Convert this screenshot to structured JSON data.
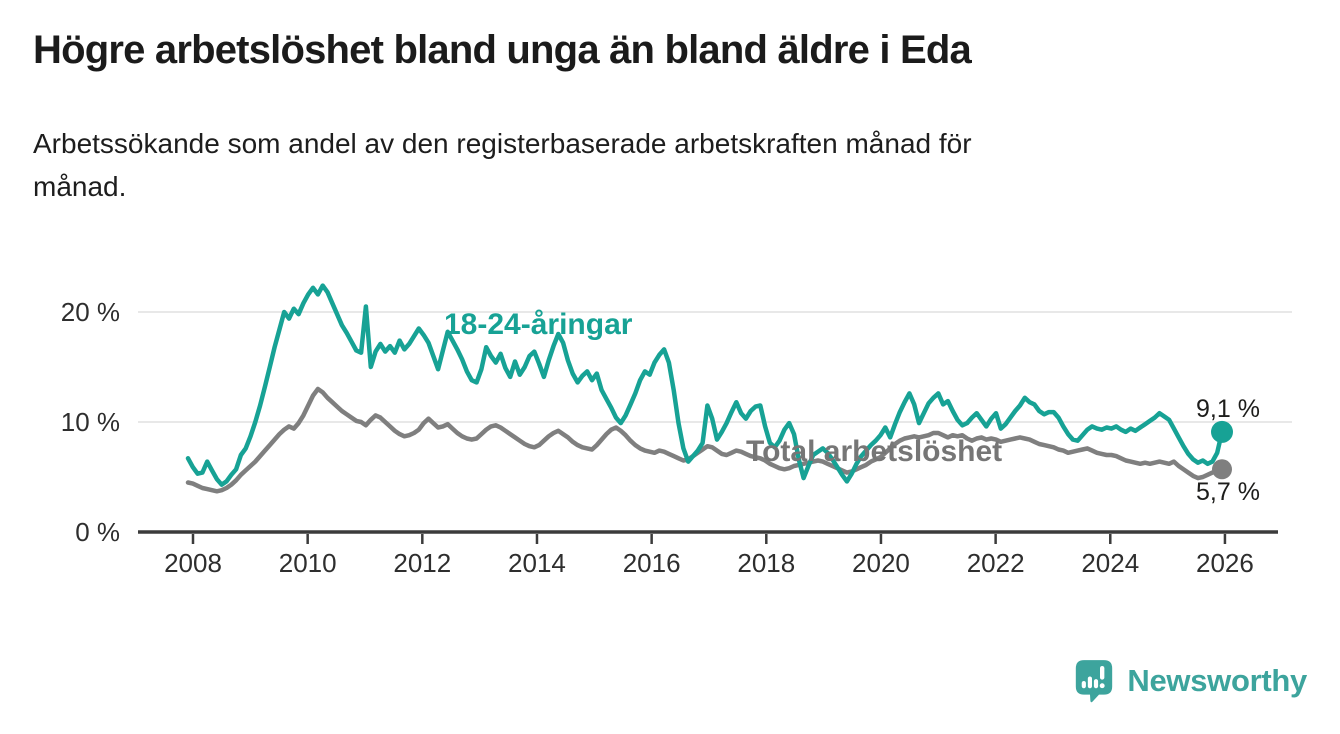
{
  "header": {
    "title": "Högre arbetslöshet bland unga än bland äldre i Eda",
    "subtitle": "Arbetssökande som andel av den registerbaserade arbetskraften månad för månad."
  },
  "chart_data": {
    "type": "line",
    "title": "Högre arbetslöshet bland unga än bland äldre i Eda",
    "subtitle": "Arbetssökande som andel av den registerbaserade arbetskraften månad för månad.",
    "x_unit": "month",
    "x_range": [
      "2008-01",
      "2025-12"
    ],
    "x_ticks": [
      2008,
      2010,
      2012,
      2014,
      2016,
      2018,
      2020,
      2022,
      2024,
      2026
    ],
    "y_ticks": [
      {
        "value": 0,
        "label": "0 %"
      },
      {
        "value": 10,
        "label": "10 %"
      },
      {
        "value": 20,
        "label": "20 %"
      }
    ],
    "ylim": [
      0,
      23
    ],
    "grid": "horizontal",
    "legend": "inline-labels",
    "colors": {
      "grid": "#e0e0e0",
      "axis": "#3b3b3b",
      "tick_text": "#2e2e2e",
      "end_label_text": "#1d1d1b"
    },
    "series": [
      {
        "id": "youth",
        "name": "18-24-åringar",
        "color": "#17a295",
        "end_label": "9,1 %",
        "last_value": 9.1,
        "values": [
          6.7,
          5.9,
          5.3,
          5.4,
          6.4,
          5.6,
          4.8,
          4.3,
          4.6,
          5.2,
          5.7,
          7.0,
          7.6,
          8.7,
          10.0,
          11.5,
          13.2,
          15.0,
          16.8,
          18.4,
          20.0,
          19.4,
          20.3,
          19.8,
          20.8,
          21.6,
          22.2,
          21.6,
          22.4,
          21.8,
          20.8,
          19.8,
          18.8,
          18.1,
          17.3,
          16.5,
          16.3,
          20.5,
          15.0,
          16.4,
          17.1,
          16.4,
          16.9,
          16.3,
          17.4,
          16.6,
          17.1,
          17.8,
          18.5,
          17.9,
          17.2,
          16.0,
          14.8,
          16.5,
          18.2,
          17.4,
          16.6,
          15.7,
          14.6,
          13.8,
          13.6,
          14.8,
          16.8,
          16.0,
          15.4,
          16.2,
          14.9,
          14.1,
          15.5,
          14.3,
          15.0,
          16.0,
          16.4,
          15.3,
          14.1,
          15.6,
          16.9,
          18.0,
          17.2,
          15.6,
          14.4,
          13.6,
          14.2,
          14.6,
          13.8,
          14.4,
          12.9,
          12.1,
          11.3,
          10.4,
          9.9,
          10.6,
          11.6,
          12.6,
          13.8,
          14.6,
          14.3,
          15.4,
          16.1,
          16.6,
          15.4,
          12.9,
          9.9,
          7.6,
          6.4,
          6.9,
          7.4,
          8.1,
          11.5,
          10.3,
          8.4,
          9.1,
          9.9,
          10.9,
          11.8,
          10.8,
          10.3,
          11.0,
          11.4,
          11.5,
          9.6,
          8.1,
          7.7,
          8.3,
          9.3,
          9.9,
          8.9,
          6.6,
          4.9,
          6.0,
          7.0,
          7.3,
          7.6,
          7.2,
          6.6,
          5.9,
          5.2,
          4.6,
          5.3,
          6.2,
          6.9,
          7.4,
          7.9,
          8.3,
          8.8,
          9.5,
          8.6,
          9.8,
          10.9,
          11.8,
          12.6,
          11.6,
          9.9,
          10.8,
          11.7,
          12.2,
          12.6,
          11.6,
          11.9,
          11.0,
          10.2,
          9.7,
          9.9,
          10.4,
          10.8,
          10.2,
          9.6,
          10.3,
          10.8,
          9.4,
          9.8,
          10.4,
          11.0,
          11.5,
          12.2,
          11.8,
          11.6,
          11.0,
          10.7,
          10.9,
          10.9,
          10.4,
          9.6,
          8.9,
          8.4,
          8.3,
          8.8,
          9.3,
          9.6,
          9.4,
          9.3,
          9.5,
          9.4,
          9.6,
          9.3,
          9.1,
          9.4,
          9.2,
          9.5,
          9.8,
          10.1,
          10.4,
          10.8,
          10.5,
          10.2,
          9.4,
          8.6,
          7.8,
          7.1,
          6.6,
          6.3,
          6.5,
          6.2,
          6.4,
          7.2,
          9.1
        ]
      },
      {
        "id": "total",
        "name": "Total arbetslöshet",
        "color": "#7f7f7f",
        "label_color": "#767676",
        "end_label": "5,7 %",
        "last_value": 5.7,
        "values": [
          4.5,
          4.4,
          4.2,
          4.0,
          3.9,
          3.8,
          3.7,
          3.8,
          4.0,
          4.3,
          4.7,
          5.2,
          5.6,
          6.0,
          6.4,
          6.9,
          7.4,
          7.9,
          8.4,
          8.9,
          9.3,
          9.6,
          9.4,
          9.9,
          10.6,
          11.5,
          12.4,
          13.0,
          12.7,
          12.2,
          11.8,
          11.4,
          11.0,
          10.7,
          10.4,
          10.1,
          10.0,
          9.7,
          10.2,
          10.6,
          10.4,
          10.0,
          9.6,
          9.2,
          8.9,
          8.7,
          8.8,
          9.0,
          9.3,
          9.9,
          10.3,
          9.9,
          9.5,
          9.6,
          9.8,
          9.4,
          9.0,
          8.7,
          8.5,
          8.4,
          8.5,
          8.9,
          9.3,
          9.6,
          9.7,
          9.5,
          9.2,
          8.9,
          8.6,
          8.3,
          8.0,
          7.8,
          7.7,
          7.9,
          8.3,
          8.7,
          9.0,
          9.2,
          8.9,
          8.6,
          8.2,
          7.9,
          7.7,
          7.6,
          7.5,
          7.9,
          8.4,
          8.9,
          9.3,
          9.5,
          9.2,
          8.8,
          8.3,
          7.9,
          7.6,
          7.4,
          7.3,
          7.2,
          7.4,
          7.3,
          7.1,
          6.9,
          6.7,
          6.5,
          6.6,
          6.9,
          7.2,
          7.5,
          7.8,
          7.7,
          7.4,
          7.1,
          7.0,
          7.2,
          7.4,
          7.3,
          7.1,
          6.9,
          6.8,
          6.7,
          6.5,
          6.2,
          6.0,
          5.8,
          5.7,
          5.8,
          6.0,
          6.1,
          6.2,
          6.3,
          6.4,
          6.5,
          6.4,
          6.2,
          6.0,
          5.8,
          5.6,
          5.4,
          5.5,
          5.7,
          5.9,
          6.1,
          6.4,
          6.6,
          6.8,
          7.2,
          7.6,
          8.0,
          8.3,
          8.5,
          8.6,
          8.7,
          8.6,
          8.7,
          8.8,
          9.0,
          9.0,
          8.8,
          8.6,
          8.8,
          8.7,
          8.8,
          8.5,
          8.3,
          8.5,
          8.6,
          8.4,
          8.5,
          8.4,
          8.2,
          8.3,
          8.4,
          8.5,
          8.6,
          8.5,
          8.4,
          8.2,
          8.0,
          7.9,
          7.8,
          7.7,
          7.5,
          7.4,
          7.2,
          7.3,
          7.4,
          7.5,
          7.6,
          7.4,
          7.2,
          7.1,
          7.0,
          7.0,
          6.9,
          6.7,
          6.5,
          6.4,
          6.3,
          6.2,
          6.3,
          6.2,
          6.3,
          6.4,
          6.3,
          6.2,
          6.4,
          6.0,
          5.7,
          5.4,
          5.1,
          4.9,
          5.0,
          5.2,
          5.4,
          5.5,
          5.7
        ]
      }
    ]
  },
  "footer": {
    "brand": "Newsworthy",
    "brand_color": "#3da49d"
  }
}
